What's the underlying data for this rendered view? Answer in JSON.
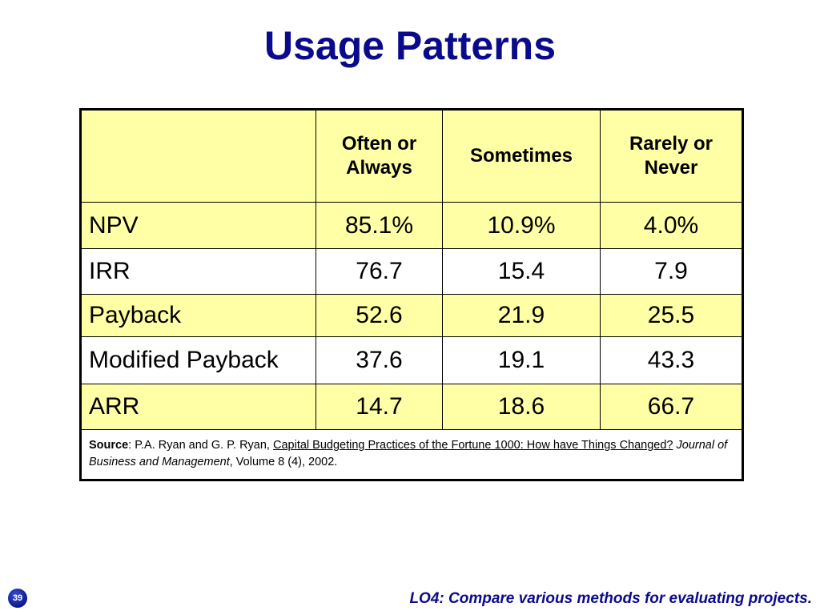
{
  "slide": {
    "title": "Usage Patterns",
    "page_number": "39",
    "footer": "LO4: Compare various methods for evaluating projects."
  },
  "table": {
    "headers": [
      "",
      "Often or Always",
      "Sometimes",
      "Rarely or Never"
    ],
    "rows": [
      {
        "method": "NPV",
        "often": "85.1%",
        "sometimes": "10.9%",
        "rarely": "4.0%"
      },
      {
        "method": "IRR",
        "often": "76.7",
        "sometimes": "15.4",
        "rarely": "7.9"
      },
      {
        "method": "Payback",
        "often": "52.6",
        "sometimes": "21.9",
        "rarely": "25.5"
      },
      {
        "method": "Modified Payback",
        "often": "37.6",
        "sometimes": "19.1",
        "rarely": "43.3"
      },
      {
        "method": "ARR",
        "often": "14.7",
        "sometimes": "18.6",
        "rarely": "66.7"
      }
    ],
    "source": {
      "label": "Source",
      "authors": ": P.A. Ryan and G. P. Ryan, ",
      "article": "Capital Budgeting Practices of the Fortune 1000: How have Things Changed?",
      "journal": "Journal of Business and Management",
      "details": ", Volume 8 (4), 2002."
    }
  },
  "colors": {
    "title": "#0a0a8c",
    "highlight_row": "#ffffa6",
    "footer": "#0a0a8c"
  }
}
